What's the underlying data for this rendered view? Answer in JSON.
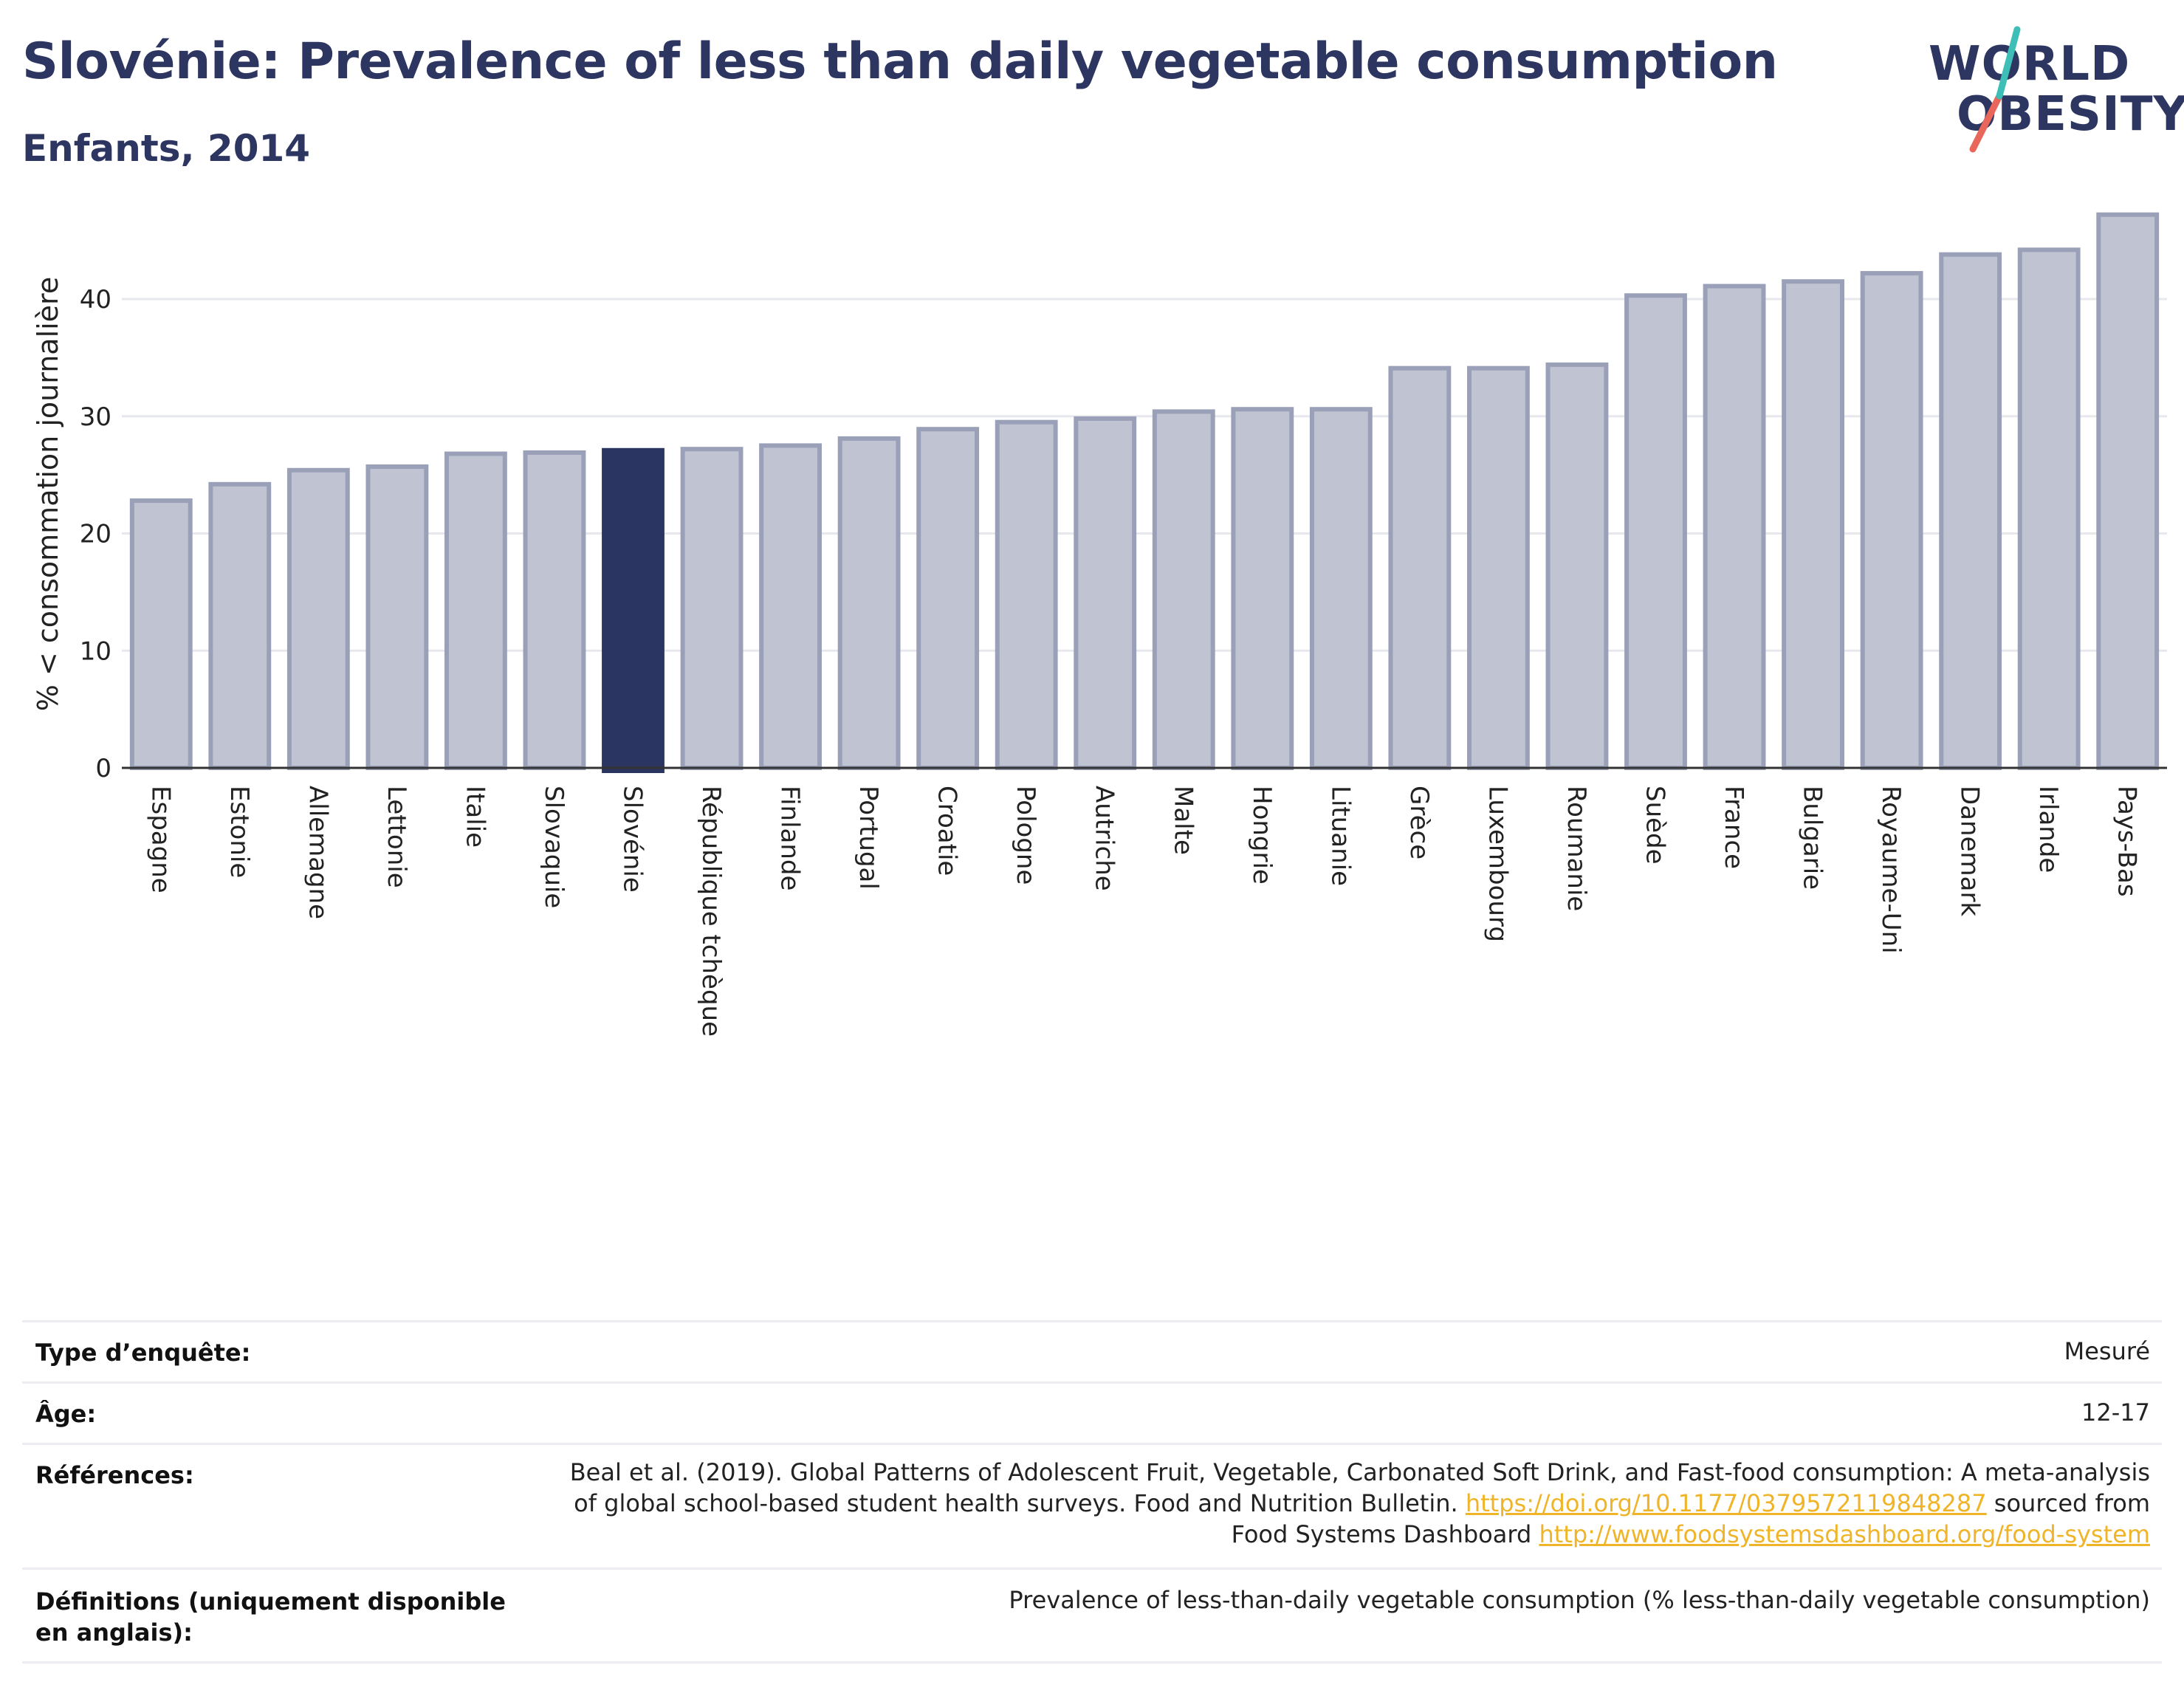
{
  "header": {
    "title": "Slovénie: Prevalence of less than daily vegetable consumption",
    "subtitle": "Enfants, 2014"
  },
  "logo": {
    "line1": "WORLD",
    "line2": "OBESITY",
    "slash_colors": [
      "#3dbfb8",
      "#e8665a"
    ]
  },
  "colors": {
    "highlight_bar": "#2b3561",
    "other_bar": "#bfc3d2",
    "other_bar_border": "#9aa0b8",
    "link": "#f0b429",
    "title": "#2d3561"
  },
  "chart_data": {
    "type": "bar",
    "ylabel": "% < consommation journalière",
    "xlabel": "",
    "ylim": [
      0,
      48
    ],
    "yticks": [
      0,
      10,
      20,
      30,
      40
    ],
    "grid": true,
    "highlight": "Slovénie",
    "categories": [
      "Espagne",
      "Estonie",
      "Allemagne",
      "Lettonie",
      "Italie",
      "Slovaquie",
      "Slovénie",
      "République tchèque",
      "Finlande",
      "Portugal",
      "Croatie",
      "Pologne",
      "Autriche",
      "Malte",
      "Hongrie",
      "Lituanie",
      "Grèce",
      "Luxembourg",
      "Roumanie",
      "Suède",
      "France",
      "Bulgarie",
      "Royaume-Uni",
      "Danemark",
      "Irlande",
      "Pays-Bas"
    ],
    "values": [
      22.8,
      24.2,
      25.4,
      25.7,
      26.8,
      26.9,
      27.1,
      27.2,
      27.5,
      28.1,
      28.9,
      29.5,
      29.8,
      30.4,
      30.6,
      30.6,
      34.1,
      34.1,
      34.4,
      40.3,
      41.1,
      41.5,
      42.2,
      43.8,
      44.2,
      47.2
    ]
  },
  "info_table": [
    {
      "label": "Type d’enquête:",
      "value": "Mesuré"
    },
    {
      "label": "Âge:",
      "value": "12-17"
    },
    {
      "label": "Références:",
      "value_lines": [
        {
          "text": "Beal et al. (2019). Global Patterns of Adolescent Fruit, Vegetable, Carbonated Soft Drink, and Fast-food consumption: A meta-analysis"
        },
        {
          "text": "of global school-based student health surveys. Food and Nutrition Bulletin. ",
          "link": "https://doi.org/10.1177/0379572119848287",
          "after": " sourced from"
        },
        {
          "text": "Food Systems Dashboard ",
          "link": "http://www.foodsystemsdashboard.org/food-system"
        }
      ]
    },
    {
      "label": "Définitions (uniquement disponible en anglais):",
      "value": "Prevalence of less-than-daily vegetable consumption (% less-than-daily vegetable consumption)"
    }
  ]
}
